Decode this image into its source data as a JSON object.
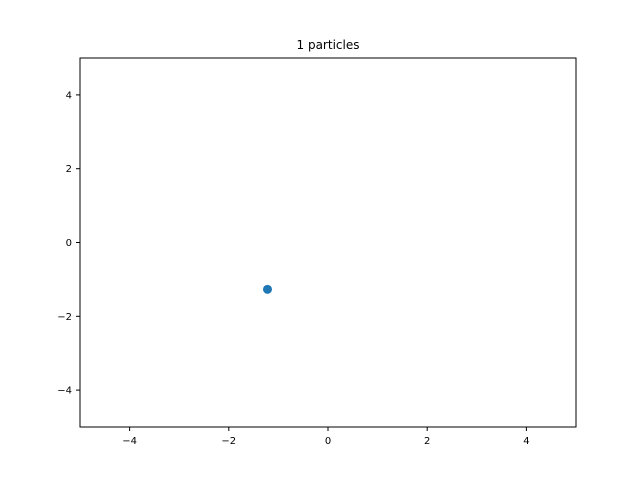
{
  "chart_data": {
    "type": "scatter",
    "title": "1 particles",
    "xlabel": "",
    "ylabel": "",
    "xlim": [
      -5,
      5
    ],
    "ylim": [
      -5,
      5
    ],
    "xticks": [
      -4,
      -2,
      0,
      2,
      4
    ],
    "yticks": [
      -4,
      -2,
      0,
      2,
      4
    ],
    "grid": false,
    "legend": false,
    "series": [
      {
        "color": "#1f77b4",
        "points": [
          {
            "x": -1.22,
            "y": -1.27
          }
        ]
      }
    ]
  }
}
